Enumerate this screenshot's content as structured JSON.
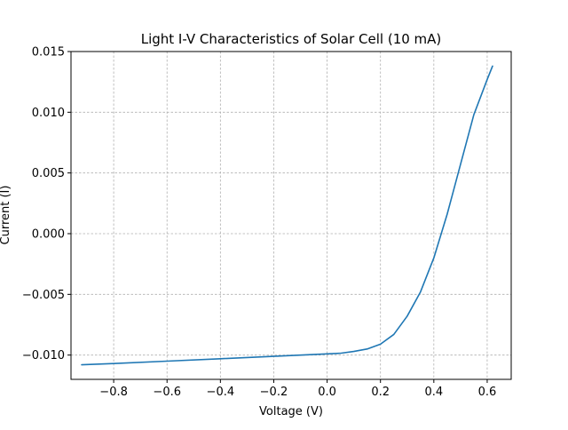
{
  "chart_data": {
    "type": "line",
    "title": "Light I-V Characteristics of Solar Cell (10 mA)",
    "xlabel": "Voltage (V)",
    "ylabel": "Current (I)",
    "xlim": [
      -0.96,
      0.69
    ],
    "ylim": [
      -0.012,
      0.015
    ],
    "xticks": [
      -0.8,
      -0.6,
      -0.4,
      -0.2,
      0.0,
      0.2,
      0.4,
      0.6
    ],
    "xtick_labels": [
      "−0.8",
      "−0.6",
      "−0.4",
      "−0.2",
      "0.0",
      "0.2",
      "0.4",
      "0.6"
    ],
    "yticks": [
      -0.01,
      -0.005,
      0.0,
      0.005,
      0.01,
      0.015
    ],
    "ytick_labels": [
      "−0.010",
      "−0.005",
      "0.000",
      "0.005",
      "0.010",
      "0.015"
    ],
    "grid": true,
    "legend": null,
    "series": [
      {
        "color": "#1f77b4",
        "x": [
          -0.92,
          -0.8,
          -0.6,
          -0.4,
          -0.2,
          0.0,
          0.05,
          0.1,
          0.15,
          0.2,
          0.25,
          0.3,
          0.35,
          0.4,
          0.45,
          0.5,
          0.55,
          0.6,
          0.62
        ],
        "y": [
          -0.0108,
          -0.0107,
          -0.0105,
          -0.0103,
          -0.0101,
          -0.0099,
          -0.00985,
          -0.0097,
          -0.0095,
          -0.0091,
          -0.0083,
          -0.0068,
          -0.0048,
          -0.002,
          0.0016,
          0.0057,
          0.0098,
          0.0127,
          0.0138
        ]
      }
    ]
  }
}
